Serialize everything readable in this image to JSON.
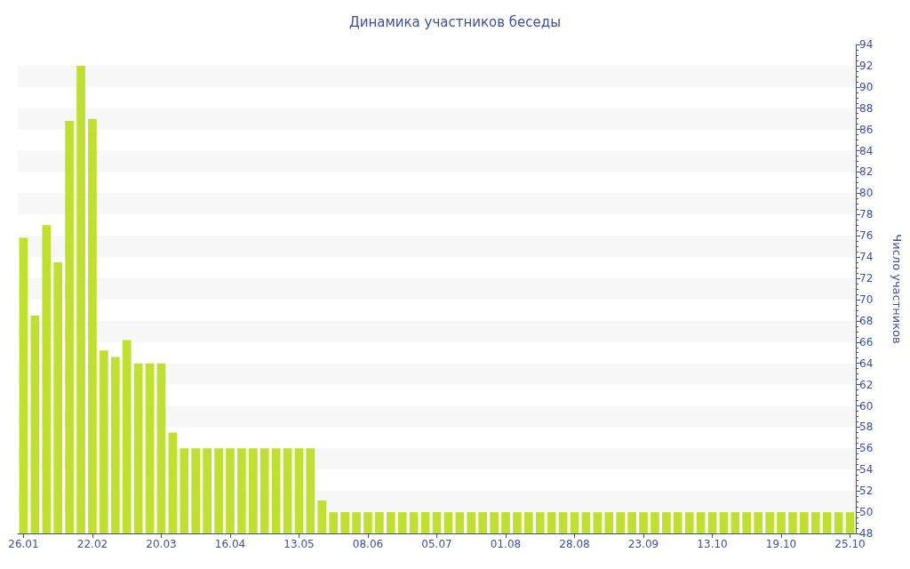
{
  "chart_data": {
    "type": "bar",
    "title": "Динамика участников беседы",
    "ylabel": "Число участников",
    "categories": [
      "26.01",
      null,
      null,
      null,
      null,
      null,
      "22.02",
      null,
      null,
      null,
      null,
      null,
      "20.03",
      null,
      null,
      null,
      null,
      null,
      "16.04",
      null,
      null,
      null,
      null,
      null,
      "13.05",
      null,
      null,
      null,
      null,
      null,
      "08.06",
      null,
      null,
      null,
      null,
      null,
      "05.07",
      null,
      null,
      null,
      null,
      null,
      "01.08",
      null,
      null,
      null,
      null,
      null,
      "28.08",
      null,
      null,
      null,
      null,
      null,
      "23.09",
      null,
      null,
      null,
      null,
      null,
      "13.10",
      null,
      null,
      null,
      null,
      null,
      "19.10",
      null,
      null,
      null,
      null,
      null,
      "25.10"
    ],
    "values": [
      75.8,
      68.5,
      77,
      73.5,
      86.8,
      92,
      87,
      65.2,
      64.6,
      66.2,
      64,
      64,
      64,
      57.5,
      56,
      56,
      56,
      56,
      56,
      56,
      56,
      56,
      56,
      56,
      56,
      56,
      51.1,
      50,
      50,
      50,
      50,
      50,
      50,
      50,
      50,
      50,
      50,
      50,
      50,
      50,
      50,
      50,
      50,
      50,
      50,
      50,
      50,
      50,
      50,
      50,
      50,
      50,
      50,
      50,
      50,
      50,
      50,
      50,
      50,
      50,
      50,
      50,
      50,
      50,
      50,
      50,
      50,
      50,
      50,
      50,
      50,
      50,
      50
    ],
    "color": "#c0e030",
    "ylim": [
      48,
      94
    ],
    "yticks": [
      48,
      50,
      52,
      54,
      56,
      58,
      60,
      62,
      64,
      66,
      68,
      70,
      72,
      74,
      76,
      78,
      80,
      82,
      84,
      86,
      88,
      90,
      92,
      94
    ],
    "grid": false
  }
}
